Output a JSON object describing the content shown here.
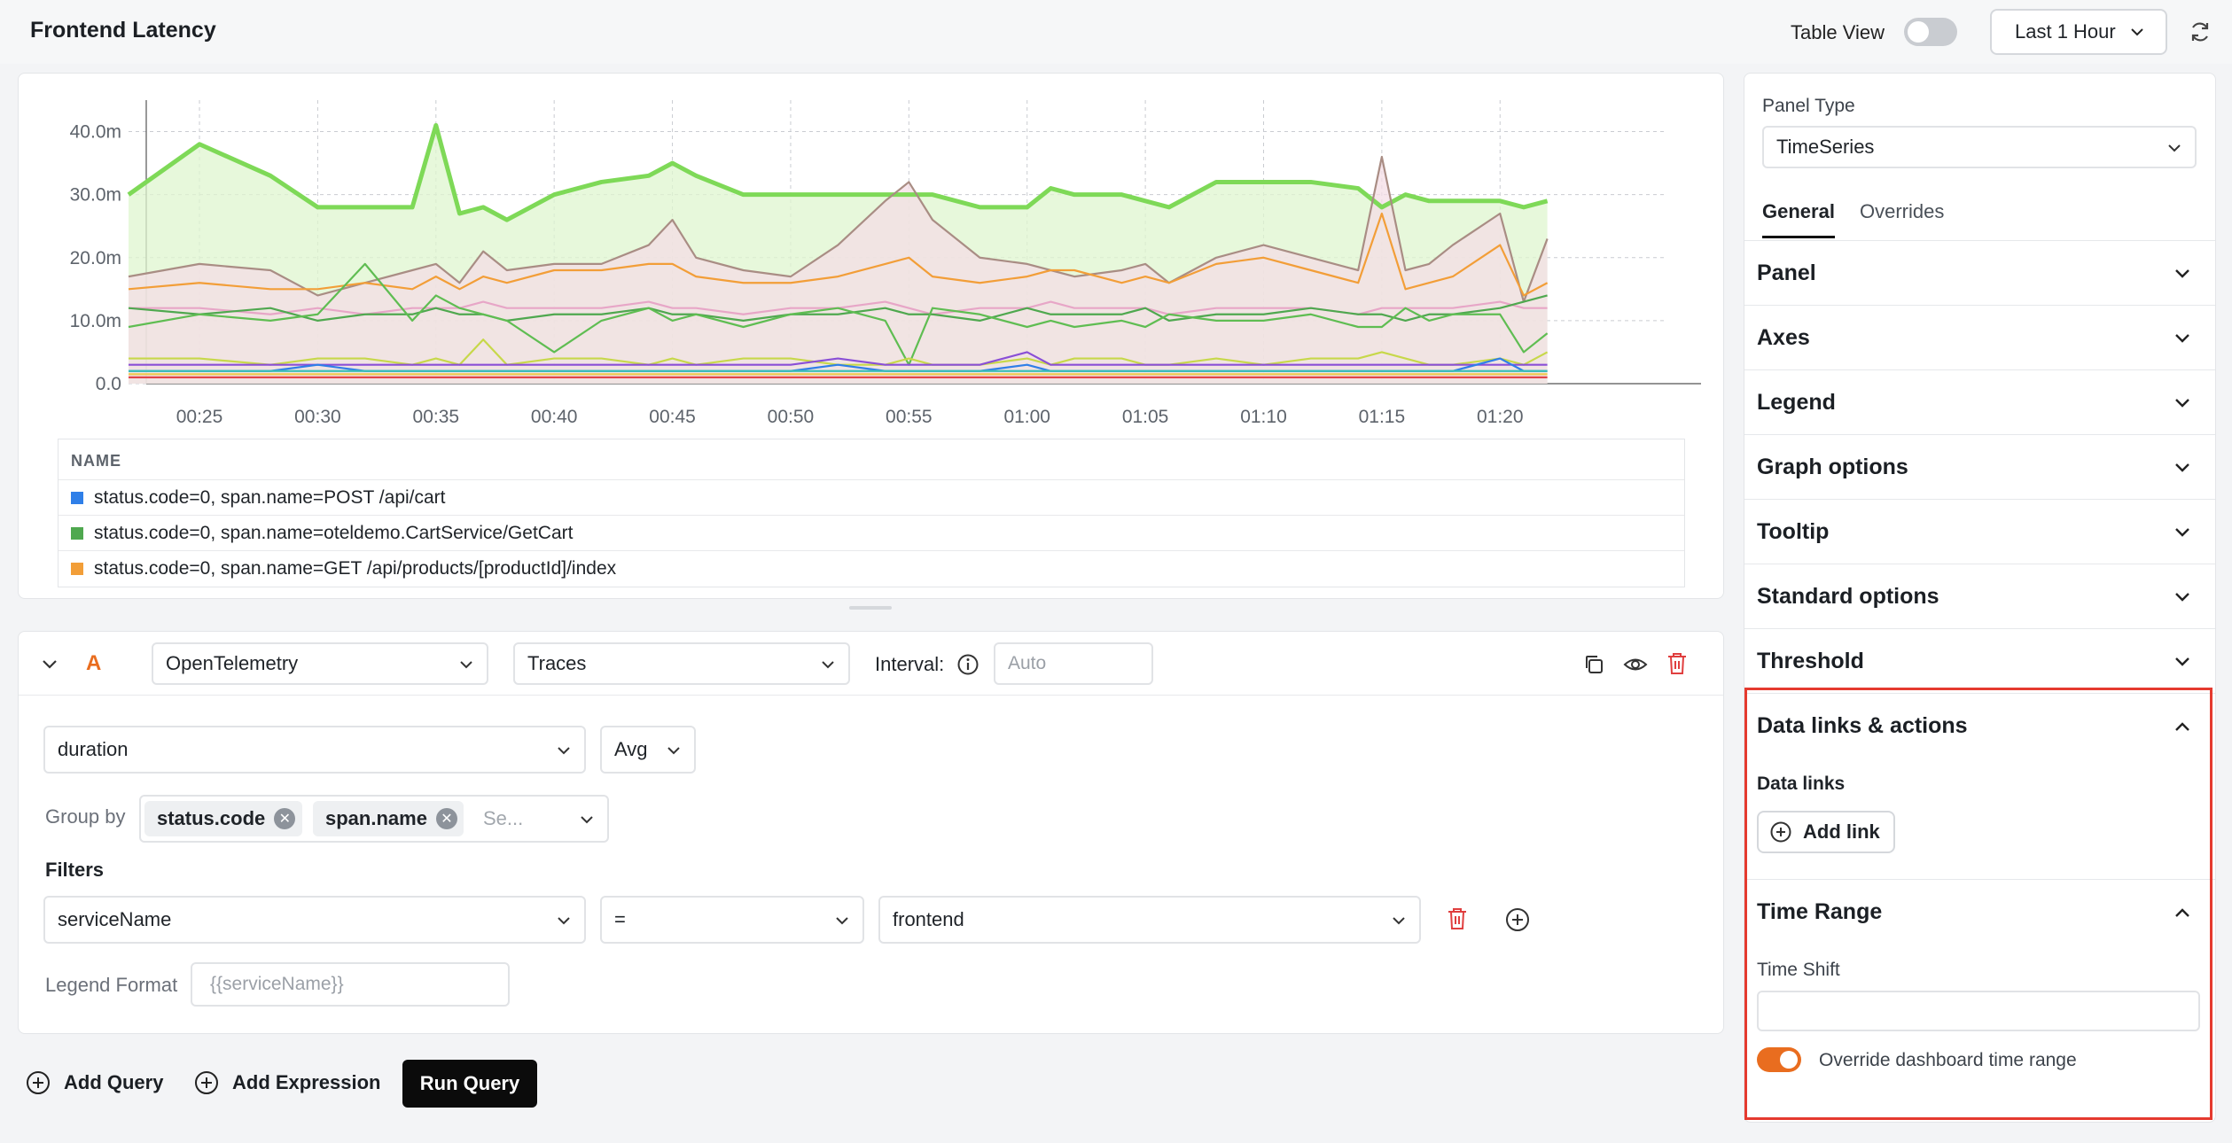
{
  "header": {
    "title": "Frontend Latency",
    "table_view_label": "Table View",
    "time_range": "Last 1 Hour"
  },
  "chart_data": {
    "type": "line",
    "title": "",
    "x": [
      "00:22",
      "00:25",
      "00:28",
      "00:30",
      "00:32",
      "00:34",
      "00:35",
      "00:36",
      "00:37",
      "00:38",
      "00:40",
      "00:42",
      "00:44",
      "00:45",
      "00:46",
      "00:48",
      "00:50",
      "00:52",
      "00:54",
      "00:55",
      "00:56",
      "00:58",
      "01:00",
      "01:01",
      "01:02",
      "01:04",
      "01:05",
      "01:06",
      "01:08",
      "01:10",
      "01:12",
      "01:14",
      "01:15",
      "01:16",
      "01:17",
      "01:18",
      "01:20",
      "01:21",
      "01:22"
    ],
    "x_ticks": [
      "00:25",
      "00:30",
      "00:35",
      "00:40",
      "00:45",
      "00:50",
      "00:55",
      "01:00",
      "01:05",
      "01:10",
      "01:15",
      "01:20"
    ],
    "y_ticks": [
      "0.0",
      "10.0m",
      "20.0m",
      "30.0m",
      "40.0m"
    ],
    "ylim": [
      0,
      45
    ],
    "grid": true,
    "series": [
      {
        "name": "",
        "color": "#7ed957",
        "fill": "#dff5cf",
        "values": [
          30,
          38,
          33,
          28,
          28,
          28,
          41,
          27,
          28,
          26,
          30,
          32,
          33,
          35,
          33,
          30,
          30,
          30,
          30,
          30,
          30,
          28,
          28,
          31,
          30,
          30,
          29,
          28,
          32,
          32,
          32,
          31,
          28,
          30,
          29,
          29,
          29,
          28,
          29
        ]
      },
      {
        "name": "",
        "color": "#a98d84",
        "fill": "#f4dde6",
        "values": [
          17,
          19,
          18,
          14,
          16,
          18,
          19,
          16,
          21,
          18,
          19,
          19,
          22,
          26,
          20,
          18,
          17,
          22,
          29,
          32,
          26,
          20,
          19,
          18,
          17,
          18,
          19,
          16,
          20,
          22,
          20,
          18,
          36,
          18,
          19,
          22,
          27,
          13,
          23
        ]
      },
      {
        "name": "status.code=0, span.name=GET /api/products/[productId]/index",
        "color": "#f29e38",
        "values": [
          15,
          16,
          15,
          15,
          16,
          15,
          17,
          15,
          17,
          16,
          18,
          18,
          19,
          19,
          17,
          16,
          16,
          17,
          19,
          20,
          17,
          16,
          17,
          18,
          18,
          16,
          17,
          16,
          19,
          20,
          18,
          16,
          27,
          15,
          16,
          17,
          22,
          14,
          16
        ]
      },
      {
        "name": "",
        "color": "#e7a6c7",
        "values": [
          12,
          12,
          11,
          12,
          11,
          12,
          12,
          12,
          13,
          12,
          12,
          12,
          13,
          12,
          12,
          11,
          12,
          12,
          13,
          12,
          11,
          12,
          12,
          13,
          12,
          12,
          12,
          11,
          12,
          12,
          12,
          11,
          12,
          12,
          12,
          12,
          13,
          12,
          12
        ]
      },
      {
        "name": "status.code=0, span.name=oteldemo.CartService/GetCart",
        "color": "#4fa84f",
        "values": [
          12,
          11,
          12,
          10,
          11,
          11,
          12,
          11,
          11,
          10,
          11,
          11,
          12,
          11,
          11,
          10,
          11,
          11,
          12,
          11,
          11,
          10,
          12,
          11,
          11,
          11,
          12,
          10,
          11,
          11,
          12,
          11,
          11,
          10,
          11,
          11,
          12,
          13,
          14
        ]
      },
      {
        "name": "",
        "color": "#5fbd52",
        "values": [
          9,
          11,
          10,
          11,
          19,
          10,
          14,
          12,
          11,
          10,
          5,
          10,
          12,
          10,
          11,
          9,
          11,
          12,
          10,
          3,
          12,
          11,
          9,
          10,
          9,
          10,
          9,
          11,
          10,
          10,
          11,
          9,
          9,
          12,
          10,
          11,
          11,
          5,
          8
        ]
      },
      {
        "name": "",
        "color": "#c7d84a",
        "values": [
          4,
          4,
          3,
          4,
          4,
          3,
          4,
          3,
          7,
          3,
          4,
          4,
          3,
          4,
          3,
          4,
          4,
          3,
          3,
          4,
          3,
          3,
          4,
          3,
          4,
          4,
          3,
          3,
          4,
          3,
          4,
          4,
          5,
          4,
          3,
          3,
          4,
          3,
          5
        ]
      },
      {
        "name": "",
        "color": "#8a4fd6",
        "values": [
          3,
          3,
          3,
          3,
          3,
          3,
          3,
          3,
          3,
          3,
          3,
          3,
          3,
          3,
          3,
          3,
          3,
          4,
          3,
          3,
          3,
          3,
          5,
          3,
          3,
          3,
          3,
          3,
          3,
          3,
          3,
          3,
          3,
          3,
          3,
          3,
          3,
          3,
          3
        ]
      },
      {
        "name": "status.code=0, span.name=POST /api/cart",
        "color": "#2f7fe8",
        "values": [
          2,
          2,
          2,
          3,
          2,
          2,
          2,
          2,
          2,
          2,
          2,
          2,
          2,
          2,
          2,
          2,
          2,
          3,
          2,
          2,
          2,
          2,
          3,
          2,
          2,
          2,
          2,
          2,
          2,
          2,
          2,
          2,
          2,
          2,
          2,
          2,
          4,
          2,
          2
        ]
      },
      {
        "name": "",
        "color": "#e2464a",
        "values": [
          1,
          1,
          1,
          1,
          1,
          1,
          1,
          1,
          1,
          1,
          1,
          1,
          1,
          1,
          1,
          1,
          1,
          1,
          1,
          1,
          1,
          1,
          1,
          1,
          1,
          1,
          1,
          1,
          1,
          1,
          1,
          1,
          1,
          1,
          1,
          1,
          1,
          1,
          1
        ]
      },
      {
        "name": "",
        "color": "#3bbfb7",
        "values": [
          2,
          2,
          2,
          2,
          2,
          2,
          2,
          2,
          2,
          2,
          2,
          2,
          2,
          2,
          2,
          2,
          2,
          2,
          2,
          2,
          2,
          2,
          2,
          2,
          2,
          2,
          2,
          2,
          2,
          2,
          2,
          2,
          2,
          2,
          2,
          2,
          2,
          2,
          2
        ]
      },
      {
        "name": "",
        "color": "#f0c94b",
        "values": [
          1.5,
          1.5,
          1.5,
          1.5,
          1.5,
          1.5,
          1.5,
          1.5,
          1.5,
          1.5,
          1.5,
          1.5,
          1.5,
          1.5,
          1.5,
          1.5,
          1.5,
          1.5,
          1.5,
          1.5,
          1.5,
          1.5,
          1.5,
          1.5,
          1.5,
          1.5,
          1.5,
          1.5,
          1.5,
          1.5,
          1.5,
          1.5,
          1.5,
          1.5,
          1.5,
          1.5,
          1.5,
          1.5,
          1.5
        ]
      }
    ]
  },
  "legend": {
    "header": "NAME",
    "rows": [
      {
        "label": "status.code=0, span.name=POST /api/cart",
        "color": "#2f7fe8"
      },
      {
        "label": "status.code=0, span.name=oteldemo.CartService/GetCart",
        "color": "#4fa84f"
      },
      {
        "label": "status.code=0, span.name=GET /api/products/[productId]/index",
        "color": "#f29e38"
      }
    ]
  },
  "query": {
    "letter": "A",
    "data_source": "OpenTelemetry",
    "signal": "Traces",
    "interval_label": "Interval:",
    "interval_placeholder": "Auto",
    "metric": "duration",
    "aggregation": "Avg",
    "group_by_label": "Group by",
    "group_by": [
      "status.code",
      "span.name"
    ],
    "group_by_placeholder": "Se...",
    "filters_label": "Filters",
    "filter_key": "serviceName",
    "filter_op": "=",
    "filter_value": "frontend",
    "legend_format_label": "Legend Format",
    "legend_format_placeholder": "{{serviceName}}"
  },
  "actions": {
    "add_query": "Add Query",
    "add_expression": "Add Expression",
    "run_query": "Run Query"
  },
  "settings": {
    "panel_type_label": "Panel Type",
    "panel_type": "TimeSeries",
    "tabs": [
      "General",
      "Overrides"
    ],
    "sections": [
      "Panel",
      "Axes",
      "Legend",
      "Graph options",
      "Tooltip",
      "Standard options",
      "Threshold"
    ],
    "data_links_title": "Data links & actions",
    "data_links_label": "Data links",
    "add_link": "Add link",
    "time_range_title": "Time Range",
    "time_shift_label": "Time Shift",
    "override_label": "Override dashboard time range",
    "highlight_color": "#e53a2f",
    "accent_color": "#e96d1f"
  }
}
